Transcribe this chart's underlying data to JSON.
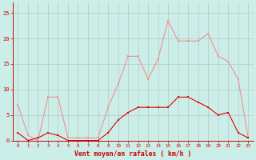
{
  "hours": [
    0,
    1,
    2,
    3,
    4,
    5,
    6,
    7,
    8,
    9,
    10,
    11,
    12,
    13,
    14,
    15,
    16,
    17,
    18,
    19,
    20,
    21,
    22,
    23
  ],
  "rafales": [
    7,
    1,
    0,
    8.5,
    8.5,
    0.5,
    0.5,
    0.5,
    0.5,
    6.5,
    11,
    16.5,
    16.5,
    12,
    16,
    23.5,
    19.5,
    19.5,
    19.5,
    21,
    16.5,
    15.5,
    12,
    0.5
  ],
  "vent_moyen": [
    1.5,
    0,
    0.5,
    1.5,
    1,
    0,
    0,
    0,
    0,
    1.5,
    4,
    5.5,
    6.5,
    6.5,
    6.5,
    6.5,
    8.5,
    8.5,
    7.5,
    6.5,
    5,
    5.5,
    1.5,
    0.5
  ],
  "bg_color": "#cceee8",
  "grid_color": "#aaaaaa",
  "line_color_rafales": "#f09090",
  "line_color_vent": "#dd0000",
  "xlabel": "Vent moyen/en rafales ( km/h )",
  "ylabel_ticks": [
    0,
    5,
    10,
    15,
    20,
    25
  ],
  "ylim": [
    0,
    27
  ],
  "xlim": [
    -0.5,
    23.5
  ],
  "tick_label_color": "#cc0000",
  "xlabel_color": "#cc0000",
  "axis_color": "#cc0000"
}
